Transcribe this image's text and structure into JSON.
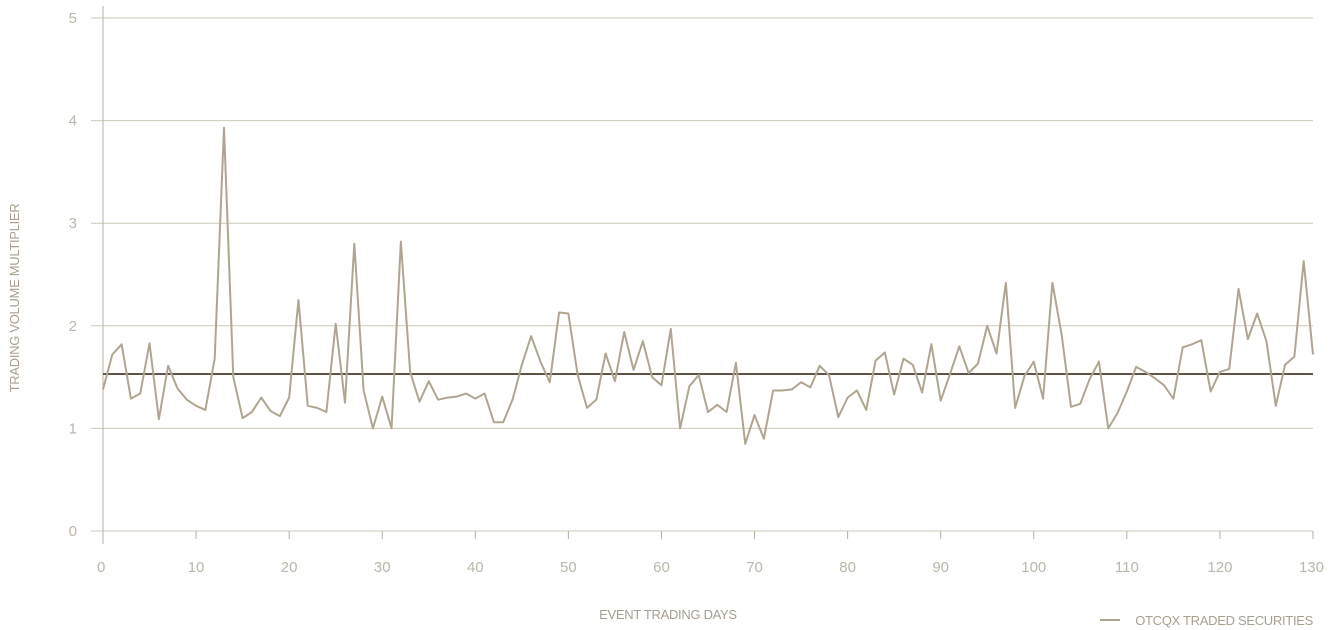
{
  "chart_data": {
    "type": "line",
    "title": "",
    "xlabel": "EVENT TRADING DAYS",
    "ylabel": "TRADING VOLUME MULTIPLIER",
    "xlim": [
      0,
      130
    ],
    "ylim": [
      0,
      5
    ],
    "xticks": [
      0,
      10,
      20,
      30,
      40,
      50,
      60,
      70,
      80,
      90,
      100,
      110,
      120,
      130
    ],
    "yticks": [
      0,
      1,
      2,
      3,
      4,
      5
    ],
    "grid": true,
    "legend": {
      "position": "bottom-right",
      "entries": [
        "OTCQX TRADED SECURITIES"
      ]
    },
    "colors": {
      "series": "#b0a591",
      "average": "#5e5446",
      "grid": "#cfc9bb",
      "axis": "#b8b0a0"
    },
    "reference_line": {
      "value": 1.53
    },
    "series": [
      {
        "name": "OTCQX TRADED SECURITIES",
        "x": [
          0,
          1,
          2,
          3,
          4,
          5,
          6,
          7,
          8,
          9,
          10,
          11,
          12,
          13,
          14,
          15,
          16,
          17,
          18,
          19,
          20,
          21,
          22,
          23,
          24,
          25,
          26,
          27,
          28,
          29,
          30,
          31,
          32,
          33,
          34,
          35,
          36,
          37,
          38,
          39,
          40,
          41,
          42,
          43,
          44,
          45,
          46,
          47,
          48,
          49,
          50,
          51,
          52,
          53,
          54,
          55,
          56,
          57,
          58,
          59,
          60,
          61,
          62,
          63,
          64,
          65,
          66,
          67,
          68,
          69,
          70,
          71,
          72,
          73,
          74,
          75,
          76,
          77,
          78,
          79,
          80,
          81,
          82,
          83,
          84,
          85,
          86,
          87,
          88,
          89,
          90,
          91,
          92,
          93,
          94,
          95,
          96,
          97,
          98,
          99,
          100,
          101,
          102,
          103,
          104,
          105,
          106,
          107,
          108,
          109,
          110,
          111,
          112,
          113,
          114,
          115,
          116,
          117,
          118,
          119,
          120,
          121,
          122,
          123,
          124,
          125,
          126,
          127,
          128,
          129,
          130
        ],
        "values": [
          1.38,
          1.72,
          1.82,
          1.29,
          1.34,
          1.83,
          1.09,
          1.61,
          1.39,
          1.28,
          1.22,
          1.18,
          1.68,
          3.93,
          1.5,
          1.1,
          1.16,
          1.3,
          1.17,
          1.12,
          1.3,
          2.25,
          1.22,
          1.2,
          1.16,
          2.02,
          1.25,
          2.8,
          1.37,
          1.0,
          1.31,
          1.0,
          2.82,
          1.55,
          1.26,
          1.46,
          1.28,
          1.3,
          1.31,
          1.34,
          1.29,
          1.34,
          1.06,
          1.06,
          1.28,
          1.62,
          1.9,
          1.65,
          1.45,
          2.13,
          2.12,
          1.52,
          1.2,
          1.28,
          1.73,
          1.46,
          1.94,
          1.57,
          1.85,
          1.5,
          1.42,
          1.97,
          1.0,
          1.41,
          1.52,
          1.16,
          1.23,
          1.16,
          1.64,
          0.85,
          1.13,
          0.9,
          1.37,
          1.37,
          1.38,
          1.45,
          1.4,
          1.61,
          1.52,
          1.11,
          1.3,
          1.37,
          1.18,
          1.66,
          1.74,
          1.33,
          1.68,
          1.62,
          1.35,
          1.82,
          1.27,
          1.53,
          1.8,
          1.54,
          1.63,
          2.0,
          1.73,
          2.42,
          1.2,
          1.51,
          1.65,
          1.29,
          2.42,
          1.91,
          1.21,
          1.24,
          1.48,
          1.65,
          1.0,
          1.15,
          1.36,
          1.6,
          1.55,
          1.49,
          1.42,
          1.29,
          1.79,
          1.82,
          1.86,
          1.36,
          1.55,
          1.58,
          2.36,
          1.87,
          2.12,
          1.85,
          1.22,
          1.62,
          1.7,
          2.63,
          1.72
        ]
      }
    ]
  }
}
